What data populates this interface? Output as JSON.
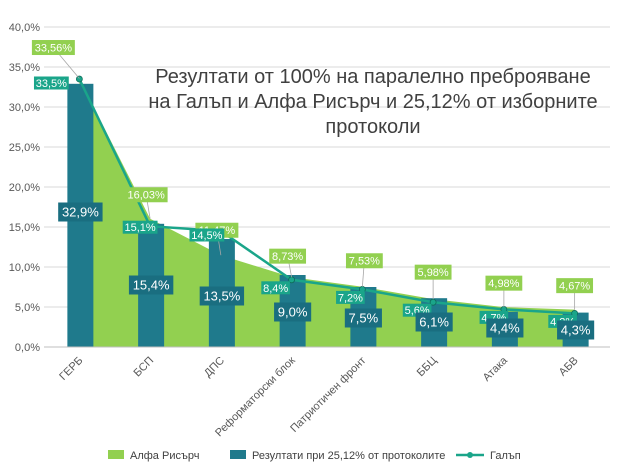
{
  "chart_data": {
    "type": "bar",
    "title_lines": [
      "Резултати от 100% на паралелно преброяване",
      "на Галъп и Алфа Рисърч и 25,12% от изборните",
      "протоколи"
    ],
    "categories": [
      "ГЕРБ",
      "БСП",
      "ДПС",
      "Реформаторски блок",
      "Патриотичен фронт",
      "ББЦ",
      "Атака",
      "АБВ"
    ],
    "ylim": [
      0,
      40
    ],
    "yticks": [
      0,
      5,
      10,
      15,
      20,
      25,
      30,
      35,
      40
    ],
    "ytick_labels": [
      "0,0%",
      "5,0%",
      "10,0%",
      "15,0%",
      "20,0%",
      "25,0%",
      "30,0%",
      "35,0%",
      "40,0%"
    ],
    "grid": true,
    "legend_position": "bottom",
    "series": [
      {
        "name": "Алфа Рисърч",
        "kind": "area",
        "color": "#92D050",
        "values": [
          33.56,
          16.03,
          11.47,
          8.73,
          7.53,
          5.98,
          4.98,
          4.67
        ],
        "labels": [
          "33,56%",
          "16,03%",
          "11,47%",
          "8,73%",
          "7,53%",
          "5,98%",
          "4,98%",
          "4,67%"
        ]
      },
      {
        "name": "Резултати при 25,12% от протоколите",
        "kind": "bar",
        "color": "#1F7A8C",
        "values": [
          32.9,
          15.4,
          13.5,
          9.0,
          7.5,
          6.1,
          4.4,
          4.3
        ],
        "labels": [
          "32,9%",
          "15,4%",
          "13,5%",
          "9,0%",
          "7,5%",
          "6,1%",
          "4,4%",
          "4,3%"
        ]
      },
      {
        "name": "Галъп",
        "kind": "line",
        "color": "#1AA58A",
        "values": [
          33.5,
          15.1,
          14.5,
          8.4,
          7.2,
          5.6,
          4.7,
          4.2
        ],
        "labels": [
          "33,5%",
          "15,1%",
          "14,5%",
          "8,4%",
          "7,2%",
          "5,6%",
          "4,7%",
          "4,2%"
        ]
      }
    ]
  }
}
